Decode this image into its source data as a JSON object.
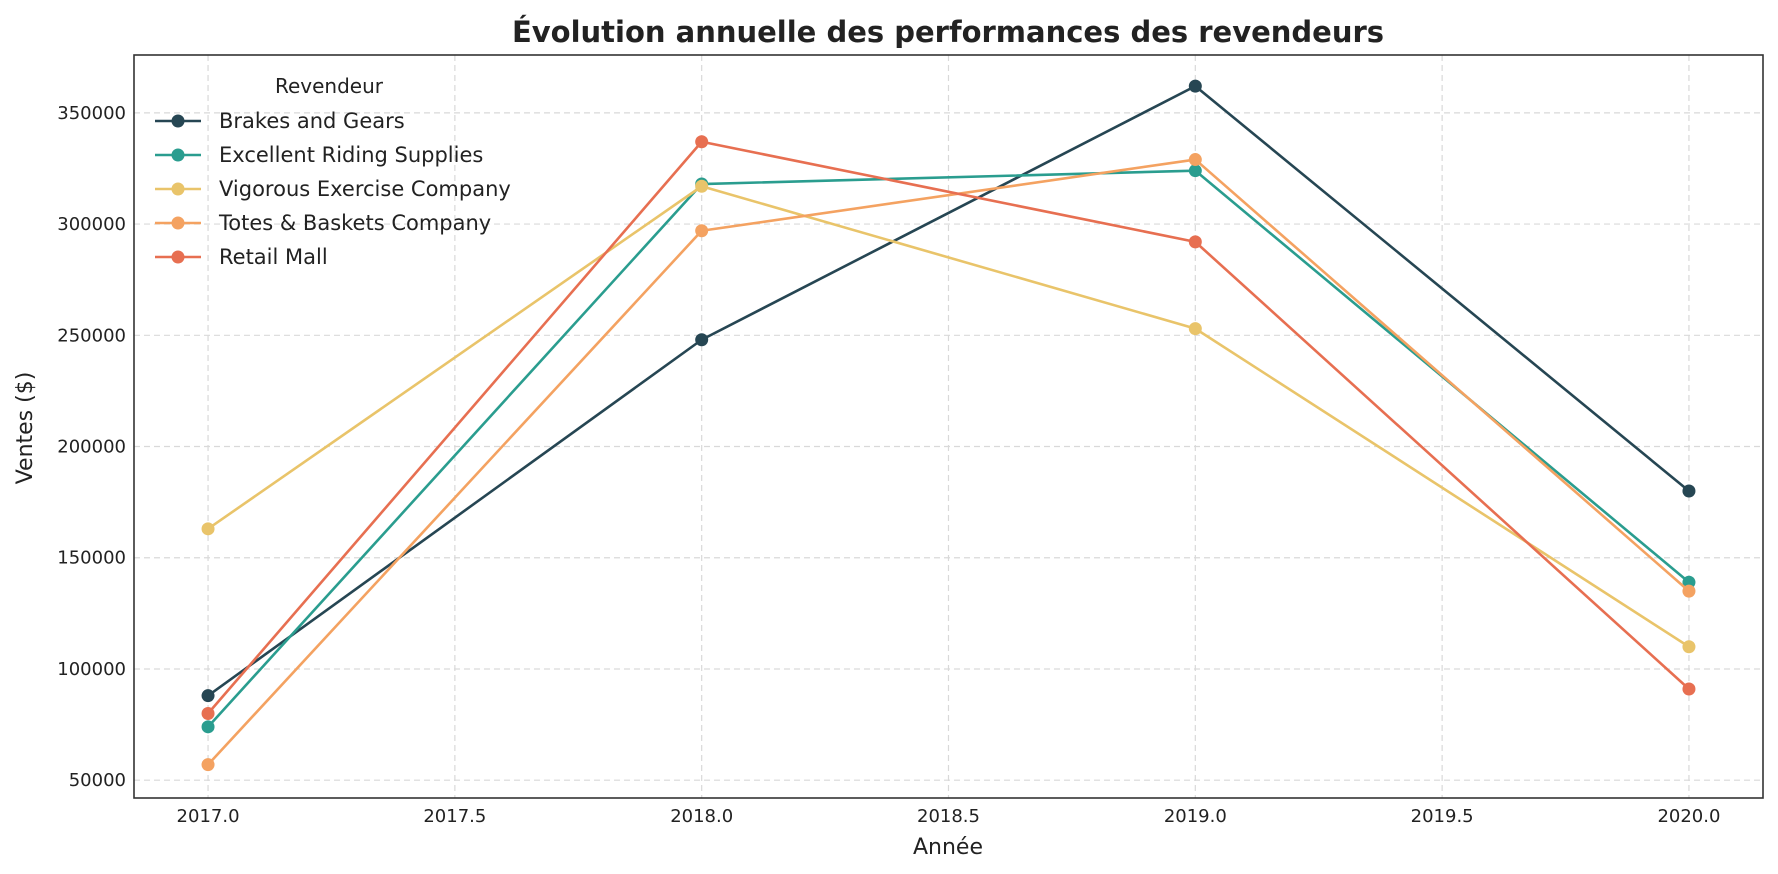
{
  "chart_data": {
    "type": "line",
    "title": "Évolution annuelle des performances des revendeurs",
    "xlabel": "Année",
    "ylabel": "Ventes ($)",
    "xlim": [
      2016.85,
      2020.15
    ],
    "ylim": [
      42000,
      376000
    ],
    "xticks": [
      2017.0,
      2017.5,
      2018.0,
      2018.5,
      2019.0,
      2019.5,
      2020.0
    ],
    "xtick_labels": [
      "2017.0",
      "2017.5",
      "2018.0",
      "2018.5",
      "2019.0",
      "2019.5",
      "2020.0"
    ],
    "yticks": [
      50000,
      100000,
      150000,
      200000,
      250000,
      300000,
      350000
    ],
    "ytick_labels": [
      "50000",
      "100000",
      "150000",
      "200000",
      "250000",
      "300000",
      "350000"
    ],
    "grid": true,
    "legend_title": "Revendeur",
    "legend_position": "top-left",
    "x": [
      2017,
      2018,
      2019,
      2020
    ],
    "series": [
      {
        "name": "Brakes and Gears",
        "color": "#264653",
        "values": [
          88000,
          248000,
          362000,
          180000
        ]
      },
      {
        "name": "Excellent Riding Supplies",
        "color": "#2a9d8f",
        "values": [
          74000,
          318000,
          324000,
          139000
        ]
      },
      {
        "name": "Vigorous Exercise Company",
        "color": "#e9c46a",
        "values": [
          163000,
          317000,
          253000,
          110000
        ]
      },
      {
        "name": "Totes & Baskets Company",
        "color": "#f4a261",
        "values": [
          57000,
          297000,
          329000,
          135000
        ]
      },
      {
        "name": "Retail Mall",
        "color": "#e76f51",
        "values": [
          80000,
          337000,
          292000,
          91000
        ]
      }
    ]
  }
}
